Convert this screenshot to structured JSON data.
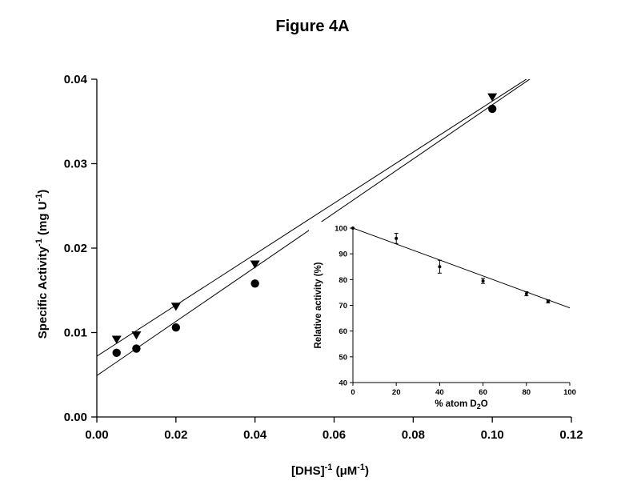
{
  "figure": {
    "title": "Figure 4A"
  },
  "chart_data": [
    {
      "type": "scatter",
      "panel": "main",
      "xlabel": "[DHS]^-1 (μM^-1)",
      "ylabel": "Specific Activity^-1 (mg U^-1)",
      "xlabel_parts": {
        "base": "[DHS]",
        "sup": "-1",
        "rest": " (μM",
        "unit_sup": "-1",
        "close": ")"
      },
      "ylabel_parts": {
        "base": "Specific Activity",
        "sup": "-1",
        "rest": " (mg U",
        "unit_sup": "-1",
        "close": ")"
      },
      "xlim": [
        0,
        0.12
      ],
      "ylim": [
        0,
        0.04
      ],
      "xticks": [
        "0.00",
        "0.02",
        "0.04",
        "0.06",
        "0.08",
        "0.10",
        "0.12"
      ],
      "yticks": [
        "0.00",
        "0.01",
        "0.02",
        "0.03",
        "0.04"
      ],
      "series": [
        {
          "marker": "triangle-down",
          "x": [
            0.005,
            0.01,
            0.02,
            0.04,
            0.1
          ],
          "y": [
            0.0092,
            0.0097,
            0.0131,
            0.0181,
            0.0379
          ],
          "fit": {
            "intercept": 0.0072,
            "slope": 0.302
          }
        },
        {
          "marker": "circle",
          "x": [
            0.005,
            0.01,
            0.02,
            0.04,
            0.1
          ],
          "y": [
            0.0076,
            0.0081,
            0.0106,
            0.0158,
            0.0365
          ],
          "fit": {
            "intercept": 0.0049,
            "slope": 0.3207
          }
        }
      ],
      "grid": false
    },
    {
      "type": "scatter",
      "panel": "inset",
      "xlabel": "% atom D2O",
      "ylabel": "Relative activity (%)",
      "xlabel_parts": {
        "pre": "% atom D",
        "sub": "2",
        "post": "O"
      },
      "ylabel_parts": {
        "text": "Relative activity (%)"
      },
      "xlim": [
        0,
        100
      ],
      "ylim": [
        40,
        100
      ],
      "xticks": [
        "0",
        "20",
        "40",
        "60",
        "80",
        "100"
      ],
      "yticks": [
        "40",
        "50",
        "60",
        "70",
        "80",
        "90",
        "100"
      ],
      "series": [
        {
          "marker": "circle",
          "x": [
            0,
            20,
            40,
            60,
            80,
            90
          ],
          "y": [
            100,
            96,
            85,
            79.5,
            74.5,
            71.5
          ],
          "yerr": [
            0,
            2,
            2.5,
            1,
            0.8,
            0.6
          ],
          "fit": {
            "intercept": 100,
            "slope": -0.31
          }
        }
      ],
      "grid": false
    }
  ]
}
